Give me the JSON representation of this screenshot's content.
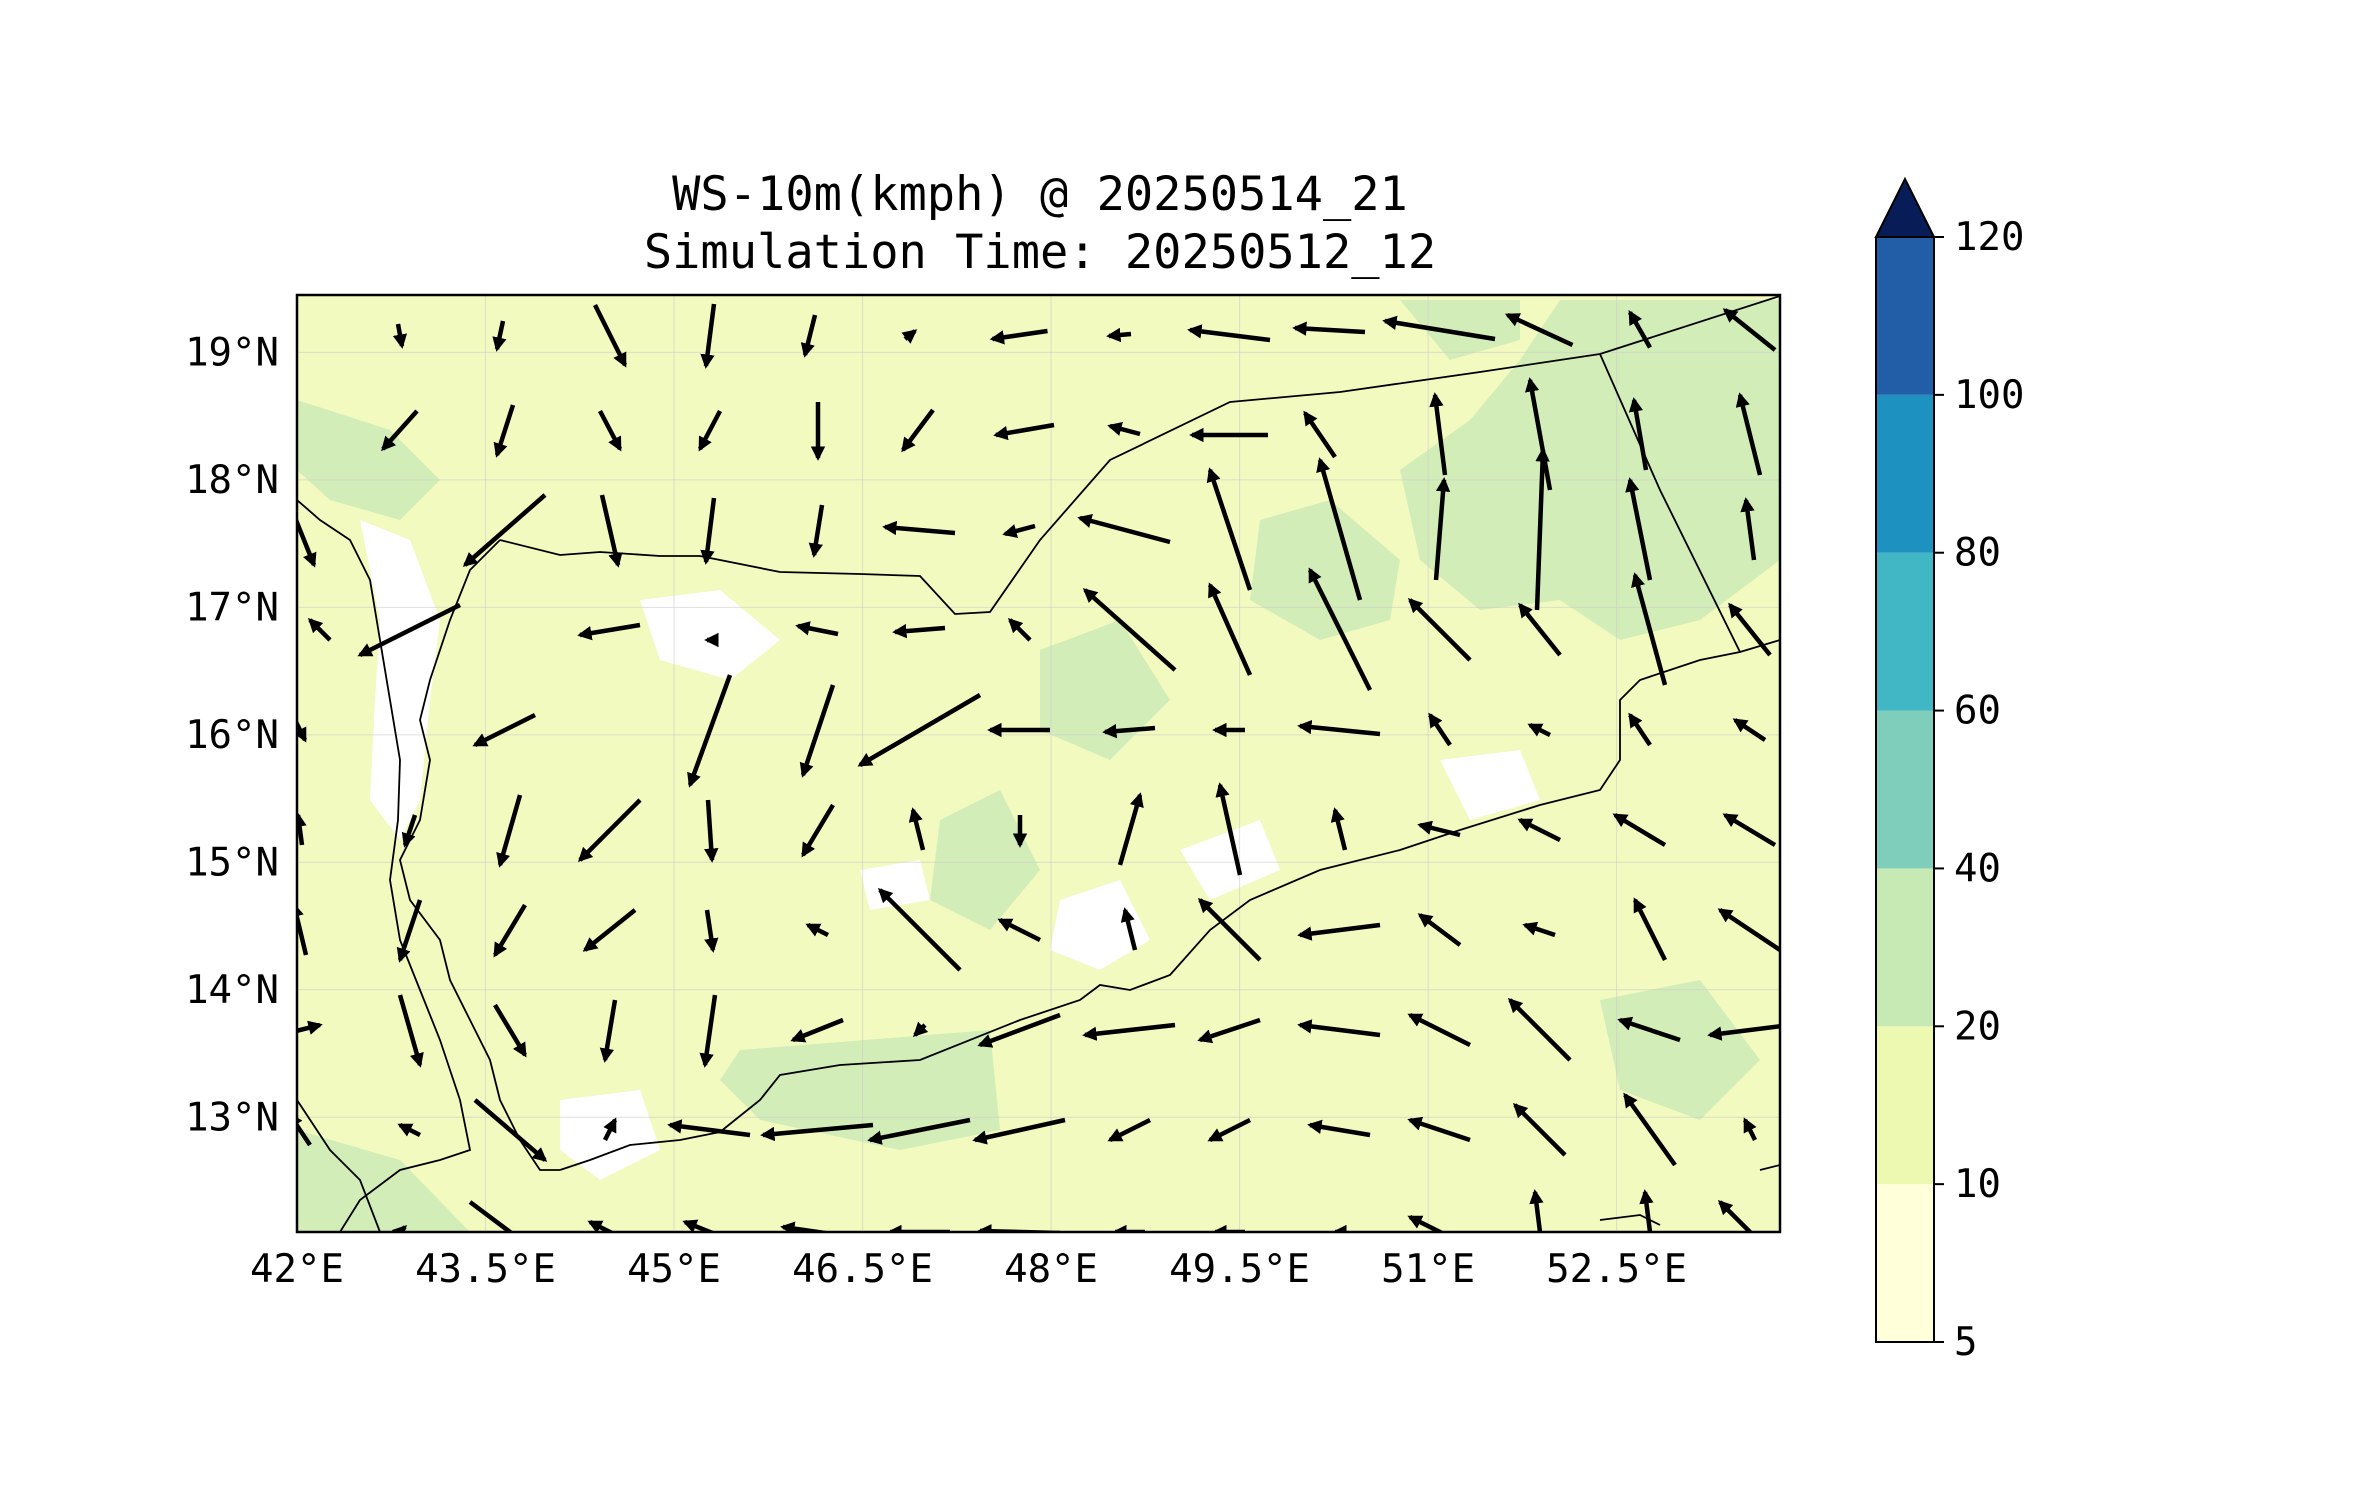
{
  "title": {
    "line1": "WS-10m(kmph) @ 20250514_21",
    "line2": "Simulation Time: 20250512_12"
  },
  "map": {
    "lon_range": [
      42.0,
      53.8
    ],
    "lat_range": [
      12.1,
      19.45
    ],
    "x_ticks": [
      {
        "value": 42.0,
        "label": "42°E"
      },
      {
        "value": 43.5,
        "label": "43.5°E"
      },
      {
        "value": 45.0,
        "label": "45°E"
      },
      {
        "value": 46.5,
        "label": "46.5°E"
      },
      {
        "value": 48.0,
        "label": "48°E"
      },
      {
        "value": 49.5,
        "label": "49.5°E"
      },
      {
        "value": 51.0,
        "label": "51°E"
      },
      {
        "value": 52.5,
        "label": "52.5°E"
      }
    ],
    "y_ticks": [
      {
        "value": 19,
        "label": "19°N"
      },
      {
        "value": 18,
        "label": "18°N"
      },
      {
        "value": 17,
        "label": "17°N"
      },
      {
        "value": 16,
        "label": "16°N"
      },
      {
        "value": 15,
        "label": "15°N"
      },
      {
        "value": 14,
        "label": "14°N"
      },
      {
        "value": 13,
        "label": "13°N"
      }
    ],
    "gridlines": true,
    "fill_color": "#f2fac0",
    "higher_speed_color": "#d3edb9",
    "low_speed_color": "#ffffff",
    "arrow_color": "#000000"
  },
  "colorbar": {
    "levels": [
      "5",
      "10",
      "20",
      "40",
      "60",
      "80",
      "100",
      "120"
    ],
    "colors": [
      "#ffffd9",
      "#edf8b1",
      "#c7e9b4",
      "#7fcdbb",
      "#41b6c4",
      "#1d91c0",
      "#225ea8",
      "#253494"
    ],
    "extend_color": "#081d58",
    "extend": "max"
  }
}
